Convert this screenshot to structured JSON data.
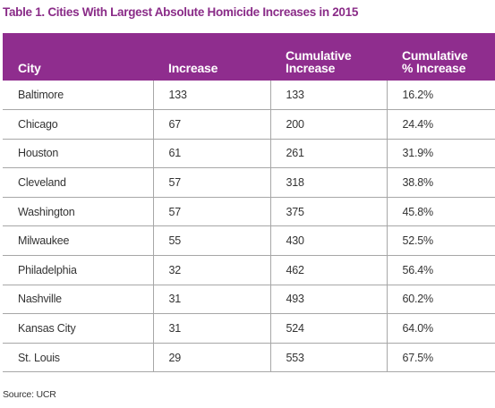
{
  "title": "Table 1. Cities With Largest Absolute Homicide Increases in 2015",
  "columns": [
    {
      "line1": "City",
      "line2": ""
    },
    {
      "line1": "Increase",
      "line2": ""
    },
    {
      "line1": "Cumulative",
      "line2": "Increase"
    },
    {
      "line1": "Cumulative",
      "line2": "% Increase"
    }
  ],
  "rows": [
    [
      "Baltimore",
      "133",
      "133",
      "16.2%"
    ],
    [
      "Chicago",
      "67",
      "200",
      "24.4%"
    ],
    [
      "Houston",
      "61",
      "261",
      "31.9%"
    ],
    [
      "Cleveland",
      "57",
      "318",
      "38.8%"
    ],
    [
      "Washington",
      "57",
      "375",
      "45.8%"
    ],
    [
      "Milwaukee",
      "55",
      "430",
      "52.5%"
    ],
    [
      "Philadelphia",
      "32",
      "462",
      "56.4%"
    ],
    [
      "Nashville",
      "31",
      "493",
      "60.2%"
    ],
    [
      "Kansas City",
      "31",
      "524",
      "64.0%"
    ],
    [
      "St. Louis",
      "29",
      "553",
      "67.5%"
    ]
  ],
  "source": "Source: UCR",
  "colors": {
    "header_bg": "#8f2d8e",
    "title": "#8a2c88"
  }
}
